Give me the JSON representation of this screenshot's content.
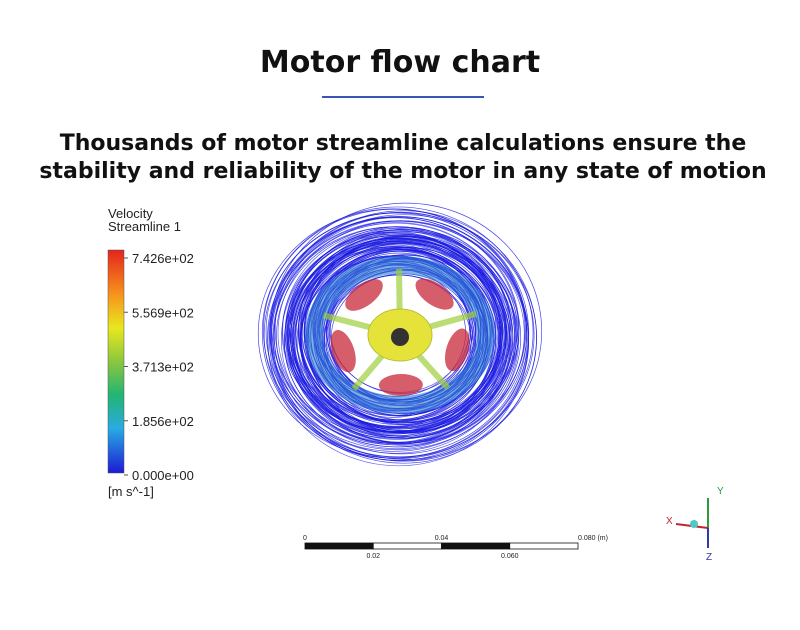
{
  "header": {
    "title": "Motor flow chart",
    "subtitle_lines": [
      "Thousands of motor streamline calculations ensure the",
      "stability and reliability of the motor in any state of motion"
    ]
  },
  "legend": {
    "title_lines": [
      "Velocity",
      "Streamline 1"
    ],
    "labels": [
      "7.426e+02",
      "5.569e+02",
      "3.713e+02",
      "1.856e+02",
      "0.000e+00"
    ],
    "unit": "[m s^-1]"
  },
  "scale_bar": {
    "top_labels": [
      "0",
      "0.04",
      "0.080 (m)"
    ],
    "bottom_labels": [
      "0.02",
      "0.060"
    ]
  },
  "axes_triad": {
    "labels": [
      "Y",
      "X",
      "Z"
    ]
  }
}
